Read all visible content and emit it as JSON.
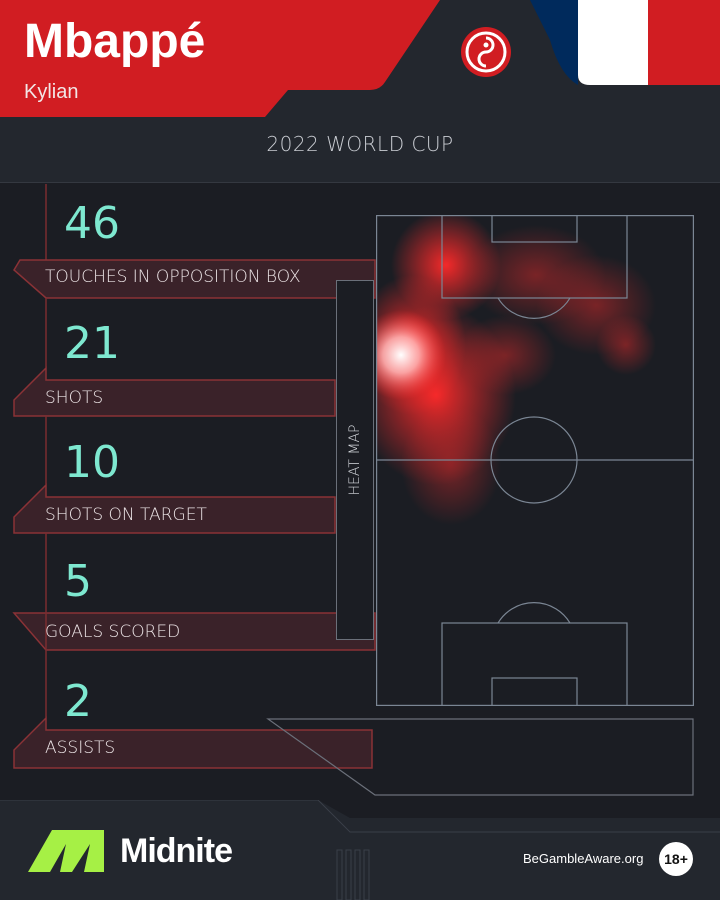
{
  "player": {
    "surname": "Mbappé",
    "first_name": "Kylian",
    "country_flag": "france-flag-icon"
  },
  "competition": "2022 WORLD CUP",
  "stats": [
    {
      "value": "46",
      "label": "TOUCHES IN OPPOSITION BOX"
    },
    {
      "value": "21",
      "label": "SHOTS"
    },
    {
      "value": "10",
      "label": "SHOTS ON TARGET"
    },
    {
      "value": "5",
      "label": "GOALS SCORED"
    },
    {
      "value": "2",
      "label": "ASSISTS"
    }
  ],
  "heat_map_label": "HEAT MAP",
  "footer": {
    "brand": "Midnite",
    "gamble_aware": "BeGambleAware.org",
    "age_badge": "18+"
  },
  "colors": {
    "accent_red": "#d11d22",
    "stat_value": "#7ee8d0",
    "brand_green": "#a6f045",
    "background": "#1b1d23"
  }
}
